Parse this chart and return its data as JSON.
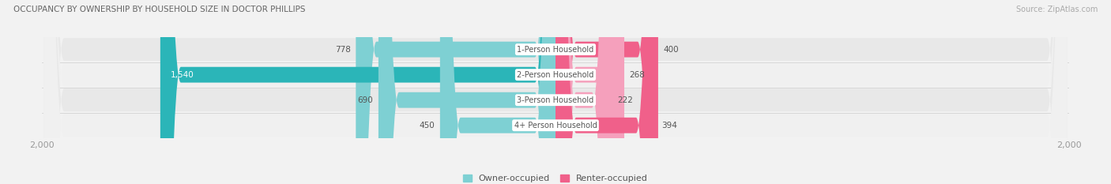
{
  "title": "OCCUPANCY BY OWNERSHIP BY HOUSEHOLD SIZE IN DOCTOR PHILLIPS",
  "source": "Source: ZipAtlas.com",
  "categories": [
    "1-Person Household",
    "2-Person Household",
    "3-Person Household",
    "4+ Person Household"
  ],
  "owner_values": [
    778,
    1540,
    690,
    450
  ],
  "renter_values": [
    400,
    268,
    222,
    394
  ],
  "max_scale": 2000,
  "owner_color_dark": "#2BB5B8",
  "owner_color_light": "#7ED0D3",
  "renter_color_dark": "#F0608A",
  "renter_color_light": "#F5A0BC",
  "center_label_bg": "#FFFFFF",
  "center_label_color": "#555555",
  "background_color": "#F2F2F2",
  "row_bg_even": "#E8E8E8",
  "row_bg_odd": "#F0F0F0",
  "title_color": "#666666",
  "source_color": "#AAAAAA",
  "axis_tick_color": "#999999",
  "label_color": "#555555",
  "legend_owner": "Owner-occupied",
  "legend_renter": "Renter-occupied"
}
